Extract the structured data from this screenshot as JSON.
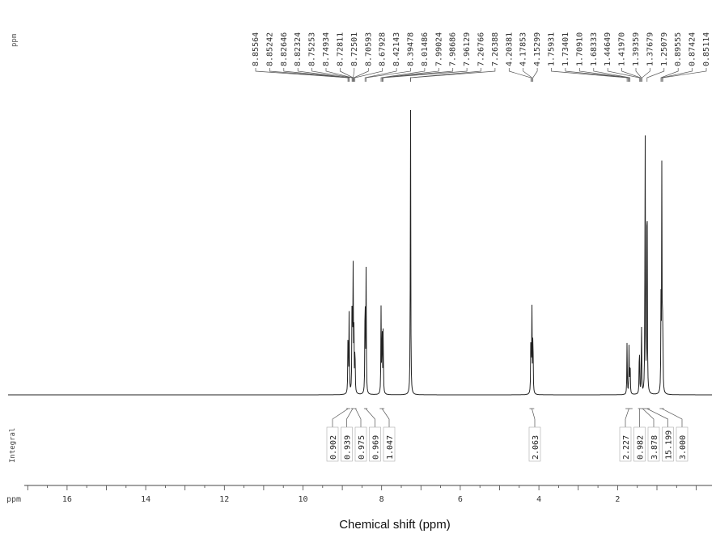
{
  "chart_data": {
    "type": "line",
    "title": "",
    "xlabel": "Chemical shift (ppm)",
    "ylabel": "",
    "axis_unit": "ppm",
    "peak_list_unit": "ppm",
    "integral_label": "Integral",
    "x_reversed": true,
    "xlim": [
      17.5,
      -0.4
    ],
    "x_ticks": [
      16,
      14,
      12,
      10,
      8,
      6,
      4,
      2
    ],
    "x_tick_labels": [
      "16",
      "14",
      "12",
      "10",
      "8",
      "6",
      "4",
      "2"
    ],
    "peak_labels": [
      "8.85564",
      "8.85242",
      "8.82646",
      "8.82324",
      "8.75253",
      "8.74934",
      "8.72811",
      "8.72501",
      "8.70593",
      "8.67928",
      "8.42143",
      "8.39478",
      "8.01486",
      "7.99024",
      "7.98686",
      "7.96129",
      "7.26766",
      "7.26388",
      "4.20381",
      "4.17853",
      "4.15299",
      "1.75931",
      "1.73401",
      "1.70910",
      "1.68333",
      "1.44649",
      "1.41970",
      "1.39359",
      "1.37679",
      "1.25079",
      "0.89555",
      "0.87424",
      "0.85114"
    ],
    "peaks": [
      {
        "ppm": 8.854,
        "height": 0.26
      },
      {
        "ppm": 8.826,
        "height": 0.27
      },
      {
        "ppm": 8.751,
        "height": 0.42
      },
      {
        "ppm": 8.727,
        "height": 0.43
      },
      {
        "ppm": 8.706,
        "height": 0.2
      },
      {
        "ppm": 8.679,
        "height": 0.18
      },
      {
        "ppm": 8.421,
        "height": 0.41
      },
      {
        "ppm": 8.395,
        "height": 0.39
      },
      {
        "ppm": 8.015,
        "height": 0.27
      },
      {
        "ppm": 7.988,
        "height": 0.25
      },
      {
        "ppm": 7.961,
        "height": 0.23
      },
      {
        "ppm": 7.266,
        "height": 1.0
      },
      {
        "ppm": 4.204,
        "height": 0.25
      },
      {
        "ppm": 4.179,
        "height": 0.27
      },
      {
        "ppm": 4.153,
        "height": 0.24
      },
      {
        "ppm": 1.759,
        "height": 0.17
      },
      {
        "ppm": 1.709,
        "height": 0.15
      },
      {
        "ppm": 1.683,
        "height": 0.13
      },
      {
        "ppm": 1.446,
        "height": 0.19
      },
      {
        "ppm": 1.393,
        "height": 0.26
      },
      {
        "ppm": 1.3,
        "height": 0.96
      },
      {
        "ppm": 1.251,
        "height": 0.92
      },
      {
        "ppm": 0.896,
        "height": 0.28
      },
      {
        "ppm": 0.874,
        "height": 0.76
      },
      {
        "ppm": 0.851,
        "height": 0.28
      }
    ],
    "integrals": [
      {
        "value": "0.902",
        "from": 8.9,
        "to": 8.8
      },
      {
        "value": "0.939",
        "from": 8.78,
        "to": 8.69
      },
      {
        "value": "0.975",
        "from": 8.69,
        "to": 8.64
      },
      {
        "value": "0.969",
        "from": 8.45,
        "to": 8.36
      },
      {
        "value": "1.047",
        "from": 8.05,
        "to": 7.93
      },
      {
        "value": "2.063",
        "from": 4.24,
        "to": 4.12
      },
      {
        "value": "2.227",
        "from": 1.8,
        "to": 1.62
      },
      {
        "value": "0.982",
        "from": 1.48,
        "to": 1.4
      },
      {
        "value": "3.878",
        "from": 1.4,
        "to": 1.33
      },
      {
        "value": "15.199",
        "from": 1.33,
        "to": 1.18
      },
      {
        "value": "3.000",
        "from": 0.93,
        "to": 0.82
      }
    ]
  }
}
